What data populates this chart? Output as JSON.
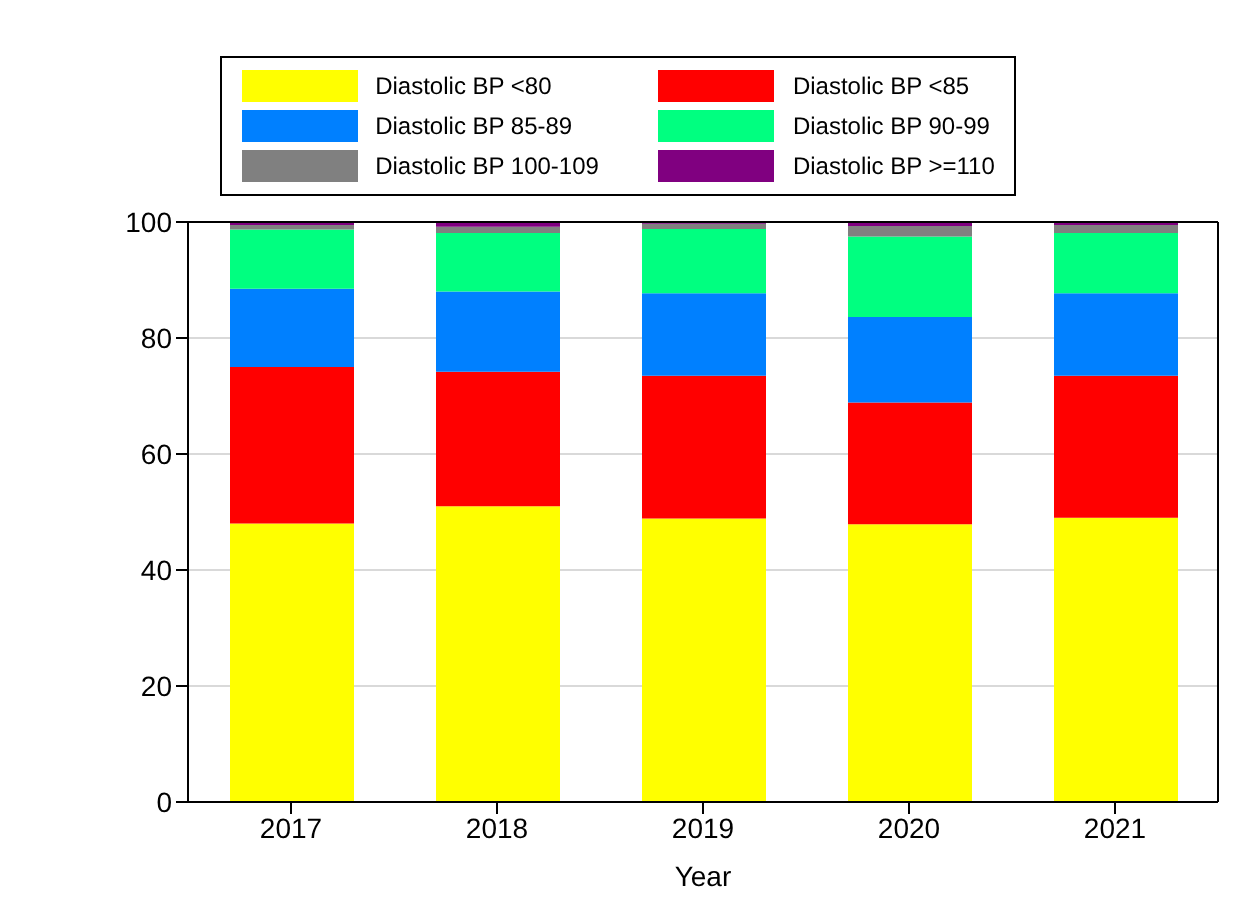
{
  "chart_data": {
    "type": "bar",
    "stacked": true,
    "xlabel": "Year",
    "categories": [
      "2017",
      "2018",
      "2019",
      "2020",
      "2021"
    ],
    "series": [
      {
        "name": "Diastolic BP <80",
        "color": "#ffff00",
        "values": [
          48,
          51,
          48.9,
          47.9,
          49
        ]
      },
      {
        "name": "Diastolic BP <85",
        "color": "#ff0000",
        "values": [
          27,
          23.2,
          24.6,
          21,
          24.5
        ]
      },
      {
        "name": "Diastolic BP 85-89",
        "color": "#0080ff",
        "values": [
          13.5,
          13.8,
          14.2,
          14.7,
          14.2
        ]
      },
      {
        "name": "Diastolic BP 90-99",
        "color": "#00ff80",
        "values": [
          10.2,
          10.1,
          11.1,
          13.9,
          10.4
        ]
      },
      {
        "name": "Diastolic BP 100-109",
        "color": "#808080",
        "values": [
          0.8,
          1.1,
          0.9,
          1.8,
          1.4
        ]
      },
      {
        "name": "Diastolic BP >=110",
        "color": "#800080",
        "values": [
          0.5,
          0.8,
          0.3,
          0.7,
          0.5
        ]
      }
    ],
    "ylim": [
      0,
      100
    ],
    "yticks": [
      0,
      20,
      40,
      60,
      80,
      100
    ],
    "grid": "y",
    "legend": "top"
  }
}
